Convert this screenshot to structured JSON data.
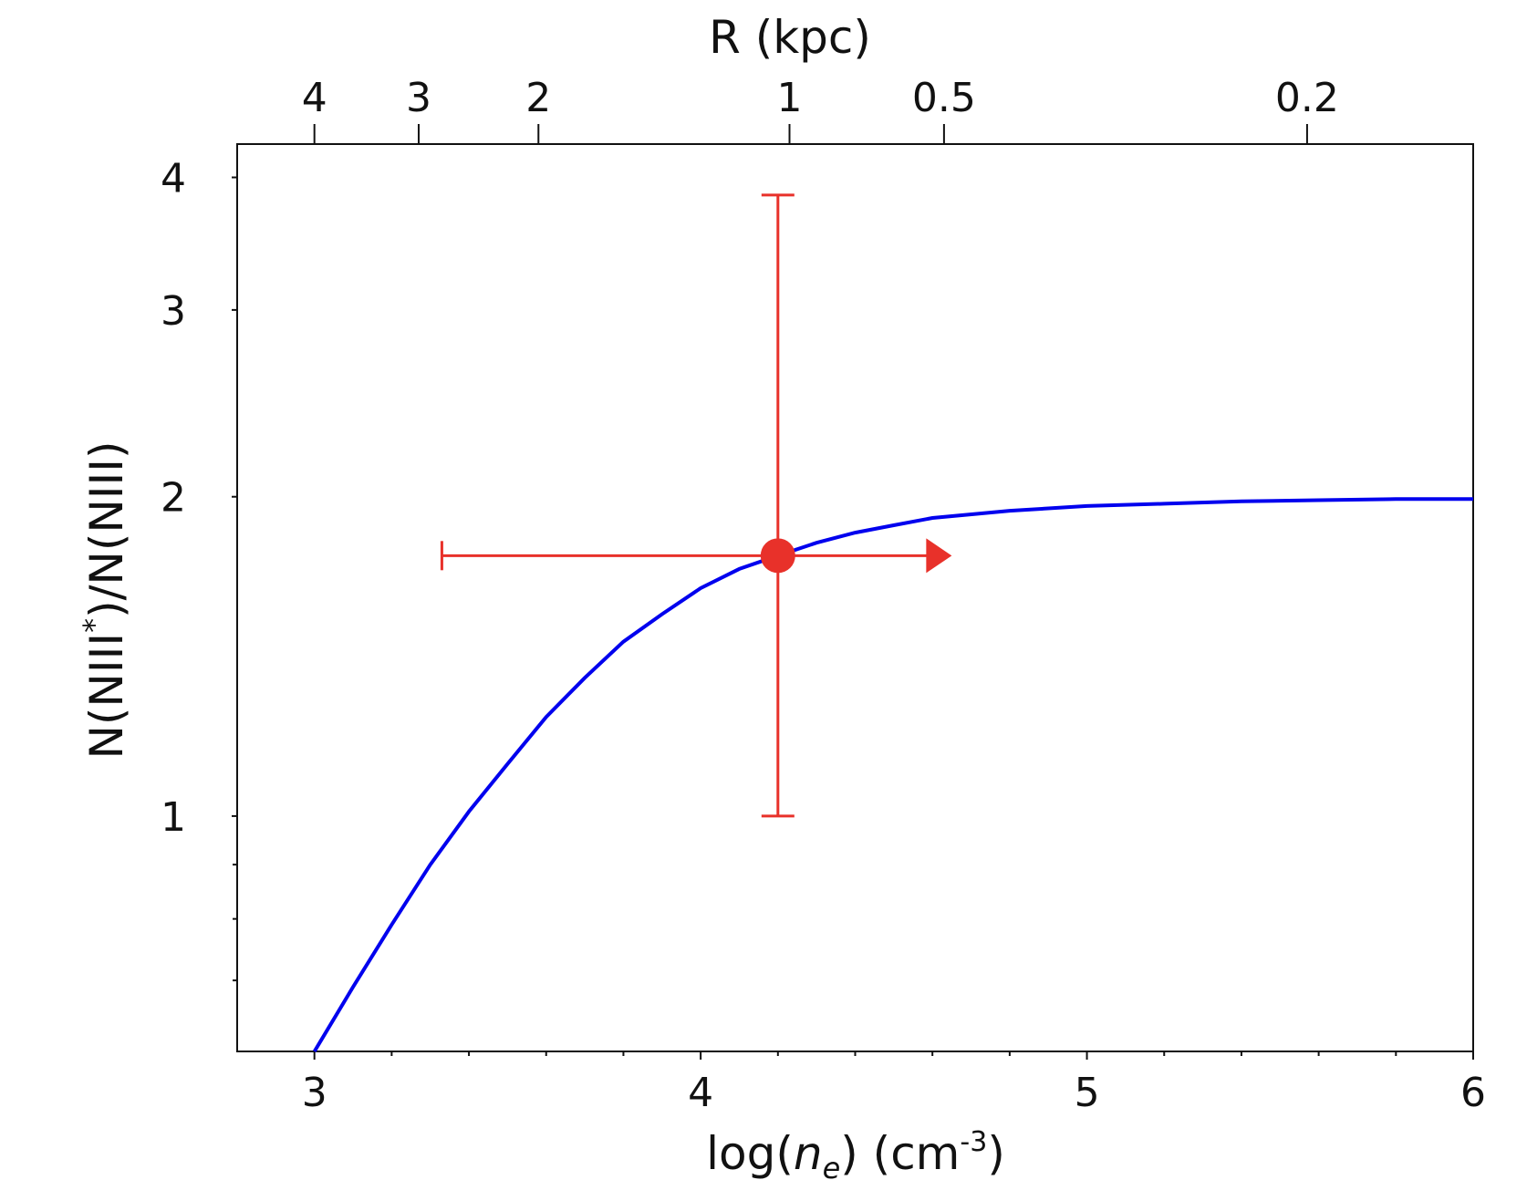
{
  "chart_data": {
    "type": "line",
    "x_axis": {
      "label_parts": {
        "pre": "log(",
        "var": "n",
        "sub": "e",
        "mid": ") (cm",
        "sup": "-3",
        "post": ")"
      },
      "range": [
        2.8,
        6.0
      ],
      "scale": "linear",
      "major_ticks": [
        3,
        4,
        5,
        6
      ],
      "tick_labels": [
        "3",
        "4",
        "5",
        "6"
      ],
      "minor_step": 0.2
    },
    "top_axis": {
      "label": "R (kpc)",
      "ticks": [
        4,
        3,
        2,
        1,
        0.5,
        0.2
      ],
      "tick_labels": [
        "4",
        "3",
        "2",
        "1",
        "0.5",
        "0.2"
      ],
      "tick_log_ne": [
        3.0,
        3.27,
        3.58,
        4.23,
        4.63,
        5.57
      ]
    },
    "y_axis": {
      "label_parts": {
        "pre": "N(NIII",
        "sup": "*",
        "post": ")/N(NIII)"
      },
      "range": [
        0.6,
        4.3
      ],
      "scale": "log",
      "major_ticks": [
        1,
        2,
        3,
        4
      ],
      "tick_labels": [
        "1",
        "2",
        "3",
        "4"
      ],
      "minor_ticks": [
        0.7,
        0.8,
        0.9
      ]
    },
    "grid": false,
    "series": [
      {
        "color": "#0000ee",
        "x": [
          3.0,
          3.1,
          3.2,
          3.3,
          3.4,
          3.5,
          3.6,
          3.7,
          3.8,
          3.9,
          4.0,
          4.1,
          4.2,
          4.3,
          4.4,
          4.5,
          4.6,
          4.8,
          5.0,
          5.2,
          5.4,
          5.6,
          5.8,
          6.0
        ],
        "y": [
          0.6,
          0.69,
          0.79,
          0.9,
          1.01,
          1.12,
          1.24,
          1.35,
          1.46,
          1.55,
          1.64,
          1.71,
          1.76,
          1.81,
          1.85,
          1.88,
          1.91,
          1.94,
          1.96,
          1.97,
          1.98,
          1.985,
          1.99,
          1.99
        ]
      }
    ],
    "points": [
      {
        "color": "#e8312a",
        "x": 4.2,
        "y": 1.76,
        "y_err": [
          1.0,
          3.85
        ],
        "x_err_low": 3.33,
        "x_lower_limit_arrow_to": 4.65
      }
    ]
  }
}
